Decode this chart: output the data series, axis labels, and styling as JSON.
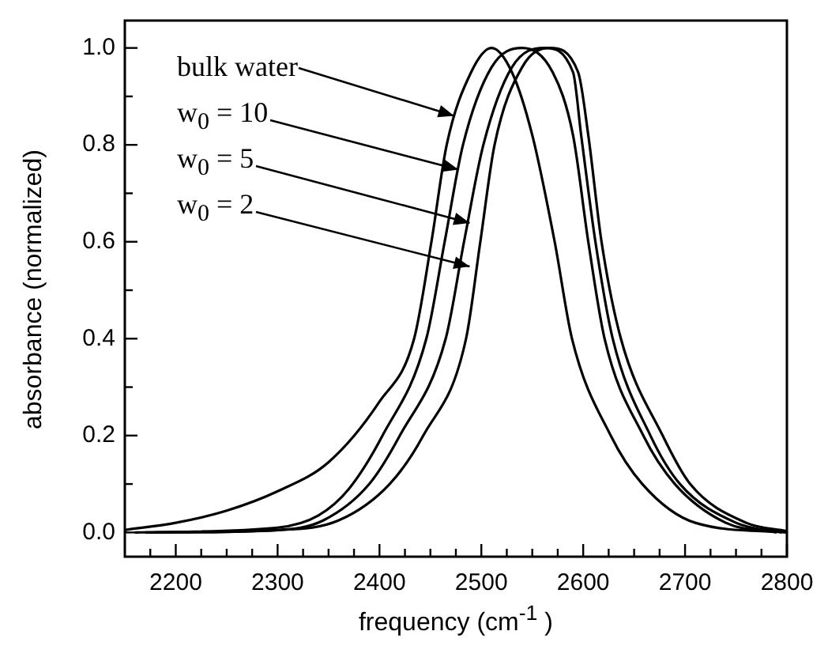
{
  "chart_data": {
    "type": "line",
    "xlabel": "frequency (cm$^{-1}$ )",
    "ylabel": "absorbance (normalized)",
    "xlim": [
      2150,
      2800
    ],
    "ylim": [
      -0.05,
      1.05
    ],
    "xticks": [
      {
        "value": 2175,
        "label": null
      },
      2200,
      {
        "value": 2225,
        "label": null
      },
      {
        "value": 2250,
        "label": null
      },
      {
        "value": 2275,
        "label": null
      },
      2300,
      {
        "value": 2325,
        "label": null
      },
      {
        "value": 2350,
        "label": null
      },
      {
        "value": 2375,
        "label": null
      },
      2400,
      {
        "value": 2425,
        "label": null
      },
      {
        "value": 2450,
        "label": null
      },
      {
        "value": 2475,
        "label": null
      },
      2500,
      {
        "value": 2525,
        "label": null
      },
      {
        "value": 2550,
        "label": null
      },
      {
        "value": 2575,
        "label": null
      },
      2600,
      {
        "value": 2625,
        "label": null
      },
      {
        "value": 2650,
        "label": null
      },
      {
        "value": 2675,
        "label": null
      },
      2700,
      {
        "value": 2725,
        "label": null
      },
      {
        "value": 2750,
        "label": null
      },
      {
        "value": 2775,
        "label": null
      },
      2800
    ],
    "yticks": [
      {
        "value": 0,
        "label": "0.0"
      },
      {
        "value": 0.1,
        "label": null
      },
      0.2,
      {
        "value": 0.3,
        "label": null
      },
      0.4,
      {
        "value": 0.5,
        "label": null
      },
      0.6,
      {
        "value": 0.7,
        "label": null
      },
      0.8,
      {
        "value": 0.9,
        "label": null
      },
      {
        "value": 1,
        "label": "1.0"
      }
    ],
    "series": [
      {
        "color": "#000000",
        "x": [
          2150,
          2200,
          2250,
          2300,
          2350,
          2400,
          2434,
          2451,
          2466,
          2490,
          2510,
          2530,
          2550,
          2572,
          2589,
          2627,
          2658,
          2710,
          2800
        ],
        "values": [
          0.005,
          0.02,
          0.045,
          0.085,
          0.145,
          0.27,
          0.4,
          0.6,
          0.8,
          0.95,
          1.0,
          0.95,
          0.82,
          0.6,
          0.4,
          0.2,
          0.1,
          0.02,
          0.0
        ]
      },
      {
        "color": "#000000",
        "x": [
          2160,
          2300,
          2340,
          2370,
          2403,
          2446,
          2464,
          2482,
          2510,
          2540,
          2570,
          2590,
          2605,
          2621,
          2659,
          2690,
          2740,
          2790
        ],
        "values": [
          0.0,
          0.01,
          0.035,
          0.09,
          0.2,
          0.4,
          0.6,
          0.8,
          0.96,
          1.0,
          0.95,
          0.82,
          0.6,
          0.4,
          0.2,
          0.1,
          0.02,
          0.0
        ]
      },
      {
        "color": "#000000",
        "x": [
          2170,
          2300,
          2345,
          2390,
          2420,
          2465,
          2483,
          2502,
          2530,
          2562,
          2590,
          2598,
          2612,
          2629,
          2666,
          2695,
          2750,
          2795
        ],
        "values": [
          0.0,
          0.005,
          0.025,
          0.1,
          0.2,
          0.4,
          0.6,
          0.8,
          0.96,
          1.0,
          0.95,
          0.82,
          0.6,
          0.4,
          0.2,
          0.1,
          0.02,
          0.0
        ]
      },
      {
        "color": "#000000",
        "x": [
          2180,
          2300,
          2360,
          2410,
          2443,
          2485,
          2499,
          2513,
          2540,
          2567,
          2595,
          2605,
          2618,
          2637,
          2678,
          2705,
          2760,
          2800
        ],
        "values": [
          0.0,
          0.005,
          0.025,
          0.1,
          0.2,
          0.4,
          0.6,
          0.8,
          0.96,
          1.0,
          0.95,
          0.82,
          0.6,
          0.4,
          0.2,
          0.1,
          0.02,
          0.003
        ]
      }
    ],
    "annotations": [
      {
        "text": "bulk water",
        "x": 2474,
        "y": 0.86
      },
      {
        "text": "w$_{0}$ = 10",
        "x": 2477,
        "y": 0.75
      },
      {
        "text": "w$_{0}$ = 5",
        "x": 2488,
        "y": 0.64
      },
      {
        "text": "w$_{0}$ = 2",
        "x": 2488,
        "y": 0.55
      }
    ],
    "grid": false,
    "legend": false,
    "marker": "none",
    "line_style": "solid"
  }
}
